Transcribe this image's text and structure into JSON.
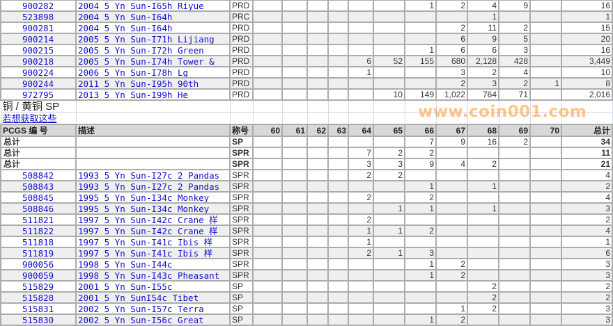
{
  "grades": [
    "60",
    "61",
    "62",
    "63",
    "64",
    "65",
    "66",
    "67",
    "68",
    "69",
    "70"
  ],
  "section1": {
    "rows": [
      {
        "pcgs": "900282",
        "desc": "2004 5 Yn Sun-I65h Riyue",
        "type": "PRD",
        "counts": {
          "66": "1",
          "67": "2",
          "68": "4",
          "69": "9"
        },
        "total": "16"
      },
      {
        "pcgs": "523898",
        "desc": "2004 5 Yn Sun-I64h",
        "type": "PRC",
        "counts": {
          "68": "1"
        },
        "total": "1"
      },
      {
        "pcgs": "900281",
        "desc": "2004 5 Yn Sun-I64h",
        "type": "PRD",
        "counts": {
          "67": "2",
          "68": "11",
          "69": "2"
        },
        "total": "15"
      },
      {
        "pcgs": "900214",
        "desc": "2005 5 Yn Sun-I71h Lijiang",
        "type": "PRD",
        "counts": {
          "67": "6",
          "68": "9",
          "69": "5"
        },
        "total": "20"
      },
      {
        "pcgs": "900215",
        "desc": "2005 5 Yn Sun-I72h Green",
        "type": "PRD",
        "counts": {
          "66": "1",
          "67": "6",
          "68": "6",
          "69": "3"
        },
        "total": "16"
      },
      {
        "pcgs": "900218",
        "desc": "2005 5 Yn Sun-I74h Tower &",
        "type": "PRD",
        "counts": {
          "64": "6",
          "65": "52",
          "66": "155",
          "67": "680",
          "68": "2,128",
          "69": "428"
        },
        "total": "3,449"
      },
      {
        "pcgs": "900224",
        "desc": "2006 5 Yn Sun-I78h Lg",
        "type": "PRD",
        "counts": {
          "64": "1",
          "67": "3",
          "68": "2",
          "69": "4"
        },
        "total": "10"
      },
      {
        "pcgs": "900244",
        "desc": "2011 5 Yn Sun-I95h 90th",
        "type": "PRD",
        "counts": {
          "67": "2",
          "68": "3",
          "69": "2",
          "70": "1"
        },
        "total": "8"
      },
      {
        "pcgs": "972795",
        "desc": "2013 5 Yn Sun-I99h He",
        "type": "PRD",
        "counts": {
          "65": "10",
          "66": "149",
          "67": "1,022",
          "68": "764",
          "69": "71"
        },
        "total": "2,016"
      }
    ]
  },
  "section2": {
    "title": "铜 / 黄铜  SP",
    "link": "若想获取这些",
    "header": {
      "pcgs": "PCGS 编 号",
      "desc": "描述",
      "type": "称号",
      "total": "总计"
    },
    "totals": [
      {
        "label": "总计",
        "type": "SP",
        "counts": {
          "66": "7",
          "67": "9",
          "68": "16",
          "69": "2"
        },
        "total": "34"
      },
      {
        "label": "总计",
        "type": "SPR",
        "counts": {
          "64": "7",
          "65": "2",
          "66": "2"
        },
        "total": "11"
      },
      {
        "label": "总计",
        "type": "SPR",
        "counts": {
          "64": "3",
          "65": "3",
          "66": "9",
          "67": "4",
          "68": "2"
        },
        "total": "21"
      }
    ],
    "rows": [
      {
        "pcgs": "508842",
        "desc": "1993 5 Yn Sun-I27c 2 Pandas",
        "type": "SPR",
        "counts": {
          "64": "2",
          "65": "2"
        },
        "total": "4"
      },
      {
        "pcgs": "508843",
        "desc": "1993 5 Yn Sun-I27c 2 Pandas",
        "type": "SPR",
        "counts": {
          "66": "1",
          "68": "1"
        },
        "total": "2"
      },
      {
        "pcgs": "508845",
        "desc": "1995 5 Yn Sun-I34c Monkey",
        "type": "SPR",
        "counts": {
          "64": "2",
          "66": "2"
        },
        "total": "4"
      },
      {
        "pcgs": "508846",
        "desc": "1995 5 Yn Sun-I34c Monkey",
        "type": "SPR",
        "counts": {
          "65": "1",
          "66": "1",
          "68": "1"
        },
        "total": "3"
      },
      {
        "pcgs": "511821",
        "desc": "1997 5 Yn Sun-I42c Crane 样",
        "type": "SPR",
        "counts": {
          "64": "2"
        },
        "total": "2"
      },
      {
        "pcgs": "511822",
        "desc": "1997 5 Yn Sun-I42c Crane 样",
        "type": "SPR",
        "counts": {
          "64": "1",
          "65": "1",
          "66": "2"
        },
        "total": "4"
      },
      {
        "pcgs": "511818",
        "desc": "1997 5 Yn Sun-I41c Ibis 样",
        "type": "SPR",
        "counts": {
          "64": "1"
        },
        "total": "1"
      },
      {
        "pcgs": "511819",
        "desc": "1997 5 Yn Sun-I41c Ibis 样",
        "type": "SPR",
        "counts": {
          "64": "2",
          "65": "1",
          "66": "3"
        },
        "total": "6"
      },
      {
        "pcgs": "900056",
        "desc": "1998 5 Yn Sun-I44c",
        "type": "SPR",
        "counts": {
          "66": "1",
          "67": "2"
        },
        "total": "3"
      },
      {
        "pcgs": "900059",
        "desc": "1998 5 Yn Sun-I43c Pheasant",
        "type": "SPR",
        "counts": {
          "66": "1",
          "67": "2"
        },
        "total": "3"
      },
      {
        "pcgs": "515829",
        "desc": "2001 5 Yn Sun-I55c",
        "type": "SP",
        "counts": {
          "68": "2"
        },
        "total": "2"
      },
      {
        "pcgs": "515828",
        "desc": "2001 5 Yn SunI54c Tibet",
        "type": "SP",
        "counts": {
          "68": "2"
        },
        "total": "2"
      },
      {
        "pcgs": "515831",
        "desc": "2002 5 Yn Sun-I57c Terra",
        "type": "SP",
        "counts": {
          "67": "1",
          "68": "2"
        },
        "total": "3"
      },
      {
        "pcgs": "515830",
        "desc": "2002 5 Yn Sun-I56c Great",
        "type": "SP",
        "counts": {
          "66": "1",
          "67": "2"
        },
        "total": "3"
      }
    ]
  },
  "watermark": "www.coin001.com",
  "colors": {
    "link": "#1010d0",
    "header_bg": "#d8d8d8",
    "alt_row": "#efefef",
    "grid": "#acacac",
    "watermark": "#ff9628"
  }
}
